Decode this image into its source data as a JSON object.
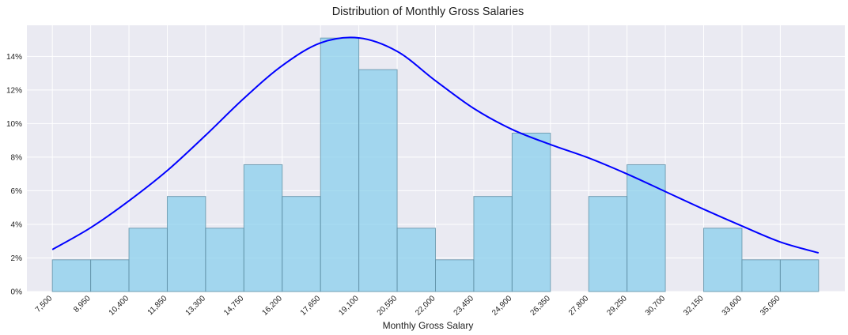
{
  "chart_data": {
    "type": "bar",
    "title": "Distribution of Monthly Gross Salaries",
    "xlabel": "Monthly Gross Salary",
    "ylabel": "",
    "bin_start": 7500,
    "bin_width": 1450,
    "x_tick_labels": [
      "7,500",
      "8,950",
      "10,400",
      "11,850",
      "13,300",
      "14,750",
      "16,200",
      "17,650",
      "19,100",
      "20,550",
      "22,000",
      "23,450",
      "24,900",
      "26,350",
      "27,800",
      "29,250",
      "30,700",
      "32,150",
      "33,600",
      "35,050"
    ],
    "values": [
      1.89,
      1.89,
      3.77,
      5.66,
      3.77,
      7.55,
      5.66,
      15.09,
      13.21,
      3.77,
      1.89,
      5.66,
      9.43,
      0,
      5.66,
      7.55,
      0,
      3.77,
      1.89,
      1.89
    ],
    "y_ticks": [
      0,
      2,
      4,
      6,
      8,
      10,
      12,
      14
    ],
    "y_tick_labels": [
      "0%",
      "2%",
      "4%",
      "6%",
      "8%",
      "10%",
      "12%",
      "14%"
    ],
    "ylim": [
      0,
      15.85
    ],
    "xlim": [
      6537,
      37493
    ],
    "kde_curve": {
      "x": [
        7500,
        8950,
        10400,
        11850,
        13300,
        14750,
        16200,
        17650,
        19100,
        20550,
        22000,
        23450,
        24900,
        26350,
        27800,
        29250,
        30700,
        32150,
        33600,
        35050,
        36500
      ],
      "y": [
        2.5,
        3.8,
        5.4,
        7.2,
        9.3,
        11.5,
        13.45,
        14.8,
        15.1,
        14.3,
        12.55,
        10.9,
        9.65,
        8.75,
        7.95,
        7.0,
        5.95,
        4.9,
        3.9,
        2.95,
        2.3
      ]
    },
    "colors": {
      "bar_fill": "#87CEEB",
      "bar_stroke": "#5f8fa5",
      "curve": "#0000ff",
      "plot_bg": "#eaeaf2",
      "grid": "#ffffff"
    },
    "grid": true
  }
}
